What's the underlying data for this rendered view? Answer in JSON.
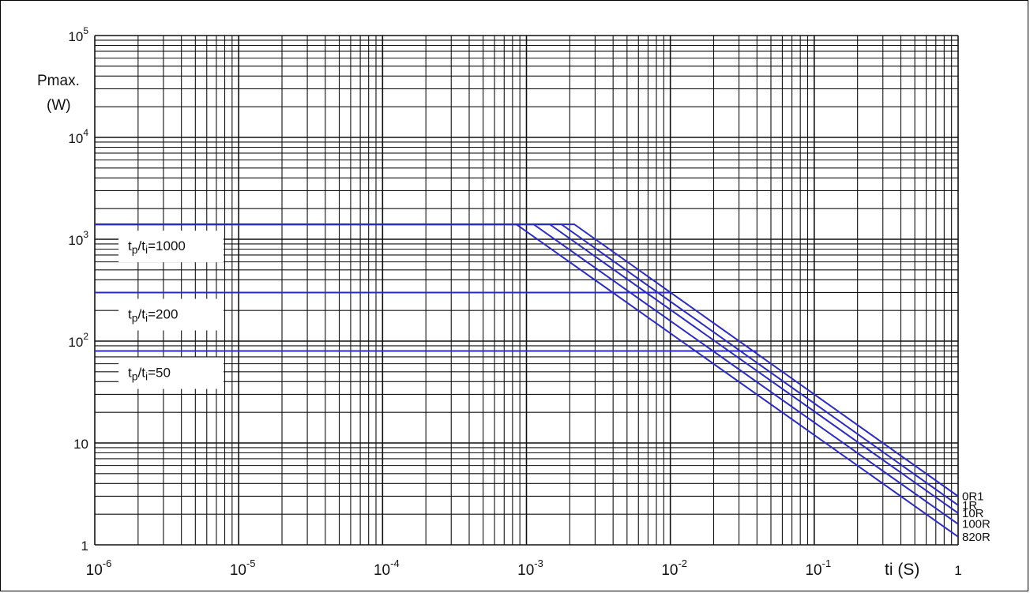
{
  "chart_data": {
    "type": "line",
    "x_scale": "log",
    "y_scale": "log",
    "xlim": [
      1e-06,
      1
    ],
    "ylim": [
      1,
      100000
    ],
    "ylabel_line1": "Pmax.",
    "ylabel_line2": "(W)",
    "xlabel": "ti (S)",
    "x_ticks": [
      {
        "value": 1e-06,
        "base": "10",
        "exp": "-6"
      },
      {
        "value": 1e-05,
        "base": "10",
        "exp": "-5"
      },
      {
        "value": 0.0001,
        "base": "10",
        "exp": "-4"
      },
      {
        "value": 0.001,
        "base": "10",
        "exp": "-3"
      },
      {
        "value": 0.01,
        "base": "10",
        "exp": "-2"
      },
      {
        "value": 0.1,
        "base": "10",
        "exp": "-1"
      },
      {
        "value": 1,
        "base": "1",
        "exp": ""
      }
    ],
    "y_ticks": [
      {
        "value": 1,
        "base": "1",
        "exp": ""
      },
      {
        "value": 10,
        "base": "10",
        "exp": ""
      },
      {
        "value": 100,
        "base": "10",
        "exp": "2"
      },
      {
        "value": 1000,
        "base": "10",
        "exp": "3"
      },
      {
        "value": 10000,
        "base": "10",
        "exp": "4"
      },
      {
        "value": 100000,
        "base": "10",
        "exp": "5"
      }
    ],
    "grid": true,
    "series_color": "#2a2ac8",
    "ratio_labels": [
      {
        "t": "t",
        "sub1": "p",
        "mid": "/t",
        "sub2": "i",
        "rest": "=1000",
        "y": 1400
      },
      {
        "t": "t",
        "sub1": "p",
        "mid": "/t",
        "sub2": "i",
        "rest": "=200",
        "y": 300
      },
      {
        "t": "t",
        "sub1": "p",
        "mid": "/t",
        "sub2": "i",
        "rest": "=50",
        "y": 80
      }
    ],
    "series": [
      {
        "name": "0R1",
        "points": [
          [
            1e-06,
            1400
          ],
          [
            0.00215,
            1400
          ],
          [
            1,
            3.0
          ]
        ]
      },
      {
        "name": "1R",
        "points": [
          [
            1e-06,
            1400
          ],
          [
            0.00175,
            1400
          ],
          [
            1,
            2.45
          ]
        ]
      },
      {
        "name": "10R",
        "points": [
          [
            1e-06,
            1400
          ],
          [
            0.00145,
            1400
          ],
          [
            1,
            2.05
          ]
        ]
      },
      {
        "name": "100R",
        "points": [
          [
            1e-06,
            1400
          ],
          [
            0.00112,
            1400
          ],
          [
            1,
            1.6
          ]
        ]
      },
      {
        "name": "820R",
        "points": [
          [
            1e-06,
            1400
          ],
          [
            0.00085,
            1400
          ],
          [
            1,
            1.2
          ]
        ]
      },
      {
        "points": [
          [
            1e-06,
            300
          ],
          [
            0.01,
            300
          ]
        ]
      },
      {
        "points": [
          [
            1e-06,
            80
          ],
          [
            0.04,
            80
          ]
        ]
      }
    ]
  }
}
